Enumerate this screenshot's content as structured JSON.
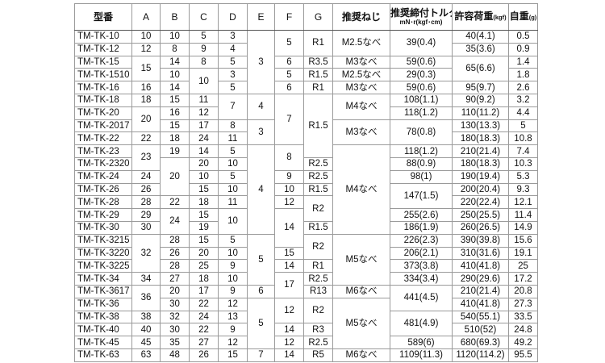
{
  "header": {
    "model": "型番",
    "A": "A",
    "B": "B",
    "C": "C",
    "D": "D",
    "E": "E",
    "F": "F",
    "G": "G",
    "screw": "推奨ねじ",
    "torque": "推奨締付トルク",
    "torque_unit": "mN･r(kgf･cm)",
    "load": "許容荷重",
    "load_unit": "(kgf)",
    "weight": "自重",
    "weight_unit": "(g)"
  },
  "columns": {
    "model": [
      "TM-TK-10",
      "TM-TK-12",
      "TM-TK-15",
      "TM-TK-1510",
      "TM-TK-16",
      "TM-TK-18",
      "TM-TK-20",
      "TM-TK-2017",
      "TM-TK-22",
      "TM-TK-23",
      "TM-TK-2320",
      "TM-TK-24",
      "TM-TK-26",
      "TM-TK-28",
      "TM-TK-29",
      "TM-TK-30",
      "TM-TK-3215",
      "TM-TK-3220",
      "TM-TK-3225",
      "TM-TK-34",
      "TM-TK-3617",
      "TM-TK-36",
      "TM-TK-38",
      "TM-TK-40",
      "TM-TK-45",
      "TM-TK-63"
    ],
    "A": [
      "10",
      "12",
      [
        "15",
        2
      ],
      "16",
      "18",
      [
        "20",
        2
      ],
      "22",
      [
        "23",
        2
      ],
      "24",
      "26",
      "28",
      "29",
      "30",
      [
        "32",
        3
      ],
      "34",
      [
        "36",
        2
      ],
      "38",
      "40",
      "45",
      "63"
    ],
    "B": [
      "10",
      "8",
      "14",
      "10",
      "14",
      "15",
      "16",
      "15",
      "18",
      "19",
      [
        "20",
        3
      ],
      "22",
      [
        "24",
        2
      ],
      "28",
      "26",
      "28",
      "27",
      "20",
      "30",
      "32",
      "30",
      "35",
      "48"
    ],
    "C": [
      "5",
      "9",
      "8",
      [
        "10",
        2
      ],
      "11",
      "12",
      "17",
      "24",
      "14",
      "20",
      "10",
      "15",
      "18",
      "15",
      "19",
      "15",
      "20",
      "25",
      "18",
      "17",
      "22",
      "24",
      "22",
      "27",
      "26"
    ],
    "D": [
      "3",
      "4",
      "5",
      "3",
      "5",
      [
        "7",
        2
      ],
      "8",
      "11",
      "5",
      "10",
      "5",
      "10",
      "11",
      [
        "10",
        2
      ],
      "5",
      "10",
      "9",
      "10",
      "9",
      "12",
      "13",
      "9",
      "12",
      "15"
    ],
    "E": [
      [
        "3",
        5
      ],
      [
        "4",
        2
      ],
      [
        "3",
        2
      ],
      [
        "4",
        7
      ],
      [
        "5",
        4
      ],
      "6",
      [
        "5",
        4
      ],
      "7"
    ],
    "F": [
      [
        "5",
        2
      ],
      "6",
      "5",
      "6",
      [
        "7",
        4
      ],
      [
        "8",
        2
      ],
      "9",
      "10",
      "12",
      [
        "14",
        3
      ],
      "15",
      "14",
      [
        "17",
        2
      ],
      [
        "12",
        2
      ],
      "14",
      "12",
      "14"
    ],
    "G": [
      [
        "R1",
        2
      ],
      "R3.5",
      "R1.5",
      "R1",
      [
        "R1.5",
        5
      ],
      "R2.5",
      "R2.5",
      "R1.5",
      [
        "R2",
        2
      ],
      "R1.5",
      [
        "R2",
        2
      ],
      "R1",
      "R2.5",
      "R13",
      [
        "R2",
        2
      ],
      "R3",
      "R2.5",
      "R5"
    ],
    "screw": [
      [
        "M2.5なべ",
        2
      ],
      "M3なべ",
      "M2.5なべ",
      "M3なべ",
      [
        "M4なべ",
        2
      ],
      [
        "M3なべ",
        2
      ],
      [
        "M4なべ",
        7
      ],
      [
        "M5なべ",
        4
      ],
      "M6なべ",
      [
        "M5なべ",
        4
      ],
      "M6なべ"
    ],
    "torque": [
      [
        "39(0.4)",
        2
      ],
      "59(0.6)",
      "29(0.3)",
      "59(0.6)",
      "108(1.1)",
      "118(1.2)",
      [
        "78(0.8)",
        2
      ],
      "118(1.2)",
      "88(0.9)",
      "98(1)",
      [
        "147(1.5)",
        2
      ],
      "255(2.6)",
      "186(1.9)",
      "226(2.3)",
      "206(2.1)",
      "373(3.8)",
      "334(3.4)",
      [
        "441(4.5)",
        2
      ],
      [
        "481(4.9)",
        2
      ],
      "589(6)",
      "1109(11.3)"
    ],
    "load": [
      "40(4.1)",
      "35(3.6)",
      [
        "65(6.6)",
        2
      ],
      "95(9.7)",
      "90(9.2)",
      "110(11.2)",
      "130(13.3)",
      "180(18.3)",
      "210(21.4)",
      "180(18.3)",
      "190(19.4)",
      "200(20.4)",
      "220(22.4)",
      "250(25.5)",
      "260(26.5)",
      "390(39.8)",
      "310(31.6)",
      "410(41.8)",
      "290(29.6)",
      "210(21.4)",
      "410(41.8)",
      "540(55.1)",
      "510(52)",
      "680(69.3)",
      "1120(114.2)"
    ],
    "weight": [
      "0.5",
      "0.9",
      "1.4",
      "1.8",
      "2.6",
      "3.2",
      "4.4",
      "5",
      "10.8",
      "7.4",
      "10.3",
      "5.3",
      "9.3",
      "12.1",
      "11.4",
      "14.9",
      "15.6",
      "19.1",
      "25",
      "17.2",
      "20.8",
      "27.3",
      "33.5",
      "24.8",
      "49.2",
      "95.5"
    ]
  }
}
